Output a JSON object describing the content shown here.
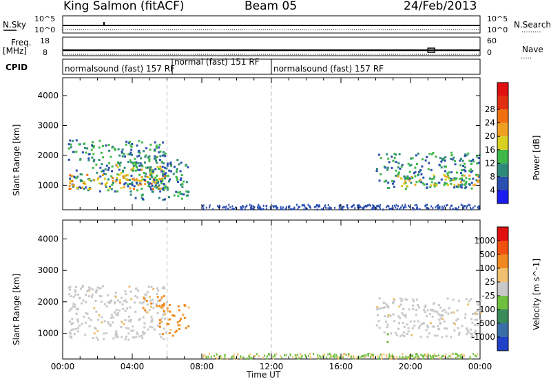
{
  "header": {
    "radar": "King Salmon (fitACF)",
    "beam": "Beam 05",
    "date": "24/Feb/2013"
  },
  "chart_data": {
    "type": "heatmap",
    "x_axis": {
      "label": "Time UT",
      "ticks": [
        "00:00",
        "04:00",
        "08:00",
        "12:00",
        "16:00",
        "20:00",
        "00:00"
      ],
      "range_hours": [
        0,
        24
      ]
    },
    "top_panels": {
      "nsky": {
        "left_label": "N.Sky",
        "left_ticks": [
          "10^5",
          "10^0"
        ],
        "right_label": "N.Search",
        "right_ticks": [
          "10^5",
          "10^0"
        ]
      },
      "freq": {
        "left_label": "Freq.",
        "left_unit": "[MHz]",
        "left_ticks": [
          "18",
          "8"
        ],
        "right_label": "Nave",
        "right_ticks": [
          "60",
          "0"
        ]
      },
      "cpid": {
        "label": "CPID",
        "segments": [
          {
            "text": "normalsound (fast) 157 RF",
            "start_h": 0,
            "end_h": 6.3
          },
          {
            "text": "normal (fast) 151 RF",
            "start_h": 6.3,
            "end_h": 12.0
          },
          {
            "text": "normalsound (fast) 157 RF",
            "start_h": 12.0,
            "end_h": 24
          }
        ]
      }
    },
    "power_panel": {
      "ylabel": "Slant Range [km]",
      "yticks": [
        "1000",
        "2000",
        "3000",
        "4000"
      ],
      "ylim_km": [
        180,
        4600
      ],
      "colorbar_label": "Power [dB]",
      "colorbar_ticks": [
        "4",
        "8",
        "12",
        "16",
        "20",
        "24",
        "28"
      ],
      "colorbar_colors": [
        "#1c1cf0",
        "#2a4fb0",
        "#2e8a78",
        "#3fb84a",
        "#d8d020",
        "#f0a020",
        "#f07010",
        "#e03010",
        "#e01010"
      ],
      "bands": [
        {
          "t0": 0.3,
          "t1": 6.0,
          "r0": 780,
          "r1": 2500,
          "level": 2
        },
        {
          "t0": 0.3,
          "t1": 6.0,
          "r0": 850,
          "r1": 1350,
          "level": 5
        },
        {
          "t0": 3.0,
          "t1": 5.8,
          "r0": 1100,
          "r1": 1700,
          "level": 4
        },
        {
          "t0": 3.8,
          "t1": 7.2,
          "r0": 500,
          "r1": 1850,
          "level": 2
        },
        {
          "t0": 18.0,
          "t1": 24.0,
          "r0": 850,
          "r1": 2100,
          "level": 2
        },
        {
          "t0": 19.0,
          "t1": 24.0,
          "r0": 950,
          "r1": 1350,
          "level": 4
        }
      ]
    },
    "velocity_panel": {
      "ylabel": "Slant Range [km]",
      "yticks": [
        "1000",
        "2000",
        "3000",
        "4000"
      ],
      "ylim_km": [
        180,
        4600
      ],
      "colorbar_label": "Velocity [m s^-1]",
      "colorbar_ticks": [
        "1000",
        "500",
        "100",
        "25",
        "-25",
        "-100",
        "-500",
        "-1000"
      ],
      "colorbar_colors": [
        "#2040c8",
        "#3a6ea8",
        "#3a8a5a",
        "#70c040",
        "#c8c8c8",
        "#f0c070",
        "#f08a20",
        "#f05010",
        "#e01010"
      ],
      "bands": [
        {
          "t0": 0.3,
          "t1": 6.0,
          "r0": 780,
          "r1": 2500,
          "level": "ground"
        },
        {
          "t0": 4.5,
          "t1": 5.8,
          "r0": 1700,
          "r1": 2200,
          "level": "neg-500"
        },
        {
          "t0": 5.5,
          "t1": 7.2,
          "r0": 900,
          "r1": 1900,
          "level": "neg-500"
        },
        {
          "t0": 18.0,
          "t1": 24.0,
          "r0": 850,
          "r1": 2100,
          "level": "ground"
        },
        {
          "t0": 18.5,
          "t1": 18.8,
          "r0": 700,
          "r1": 1000,
          "level": "pos-100"
        }
      ]
    }
  }
}
